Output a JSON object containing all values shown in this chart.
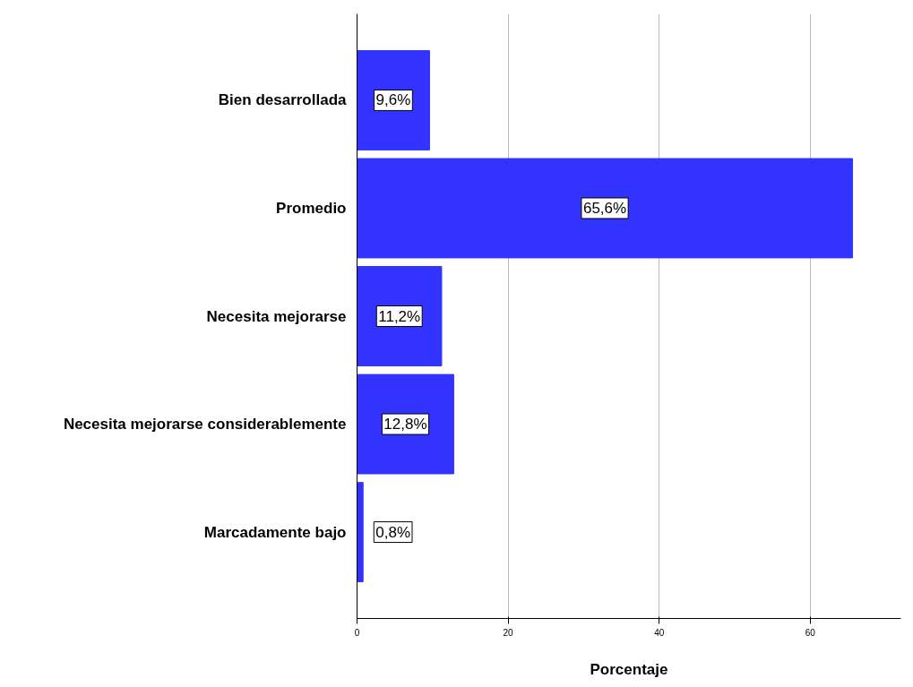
{
  "chart_data": {
    "type": "bar",
    "orientation": "horizontal",
    "xlabel": "Porcentaje",
    "categories": [
      "Bien desarrollada",
      "Promedio",
      "Necesita mejorarse",
      "Necesita mejorarse considerablemente",
      "Marcadamente bajo"
    ],
    "values": [
      9.6,
      65.6,
      11.2,
      12.8,
      0.8
    ],
    "value_labels": [
      "9,6%",
      "65,6%",
      "11,2%",
      "12,8%",
      "0,8%"
    ],
    "color": "#3333ff",
    "xlim": [
      0,
      72
    ],
    "xticks": [
      0,
      20,
      40,
      60
    ],
    "grid": "x"
  }
}
